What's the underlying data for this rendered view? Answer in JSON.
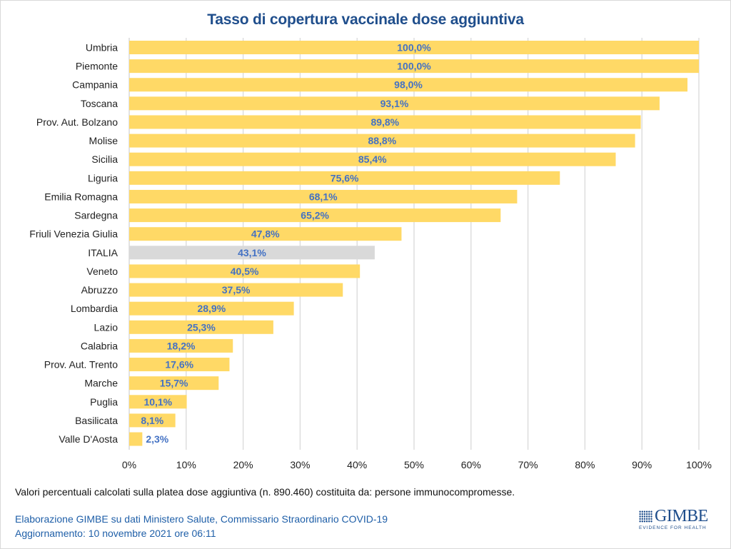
{
  "chart_data": {
    "type": "bar",
    "orientation": "horizontal",
    "title": "Tasso di copertura vaccinale dose aggiuntiva",
    "xlabel": "",
    "ylabel": "",
    "xlim": [
      0,
      100
    ],
    "x_ticks": [
      "0%",
      "10%",
      "20%",
      "30%",
      "40%",
      "50%",
      "60%",
      "70%",
      "80%",
      "90%",
      "100%"
    ],
    "grid": true,
    "categories": [
      "Umbria",
      "Piemonte",
      "Campania",
      "Toscana",
      "Prov. Aut. Bolzano",
      "Molise",
      "Sicilia",
      "Liguria",
      "Emilia Romagna",
      "Sardegna",
      "Friuli Venezia Giulia",
      "ITALIA",
      "Veneto",
      "Abruzzo",
      "Lombardia",
      "Lazio",
      "Calabria",
      "Prov. Aut. Trento",
      "Marche",
      "Puglia",
      "Basilicata",
      "Valle D'Aosta"
    ],
    "values": [
      100.0,
      100.0,
      98.0,
      93.1,
      89.8,
      88.8,
      85.4,
      75.6,
      68.1,
      65.2,
      47.8,
      43.1,
      40.5,
      37.5,
      28.9,
      25.3,
      18.2,
      17.6,
      15.7,
      10.1,
      8.1,
      2.3
    ],
    "value_labels": [
      "100,0%",
      "100,0%",
      "98,0%",
      "93,1%",
      "89,8%",
      "88,8%",
      "85,4%",
      "75,6%",
      "68,1%",
      "65,2%",
      "47,8%",
      "43,1%",
      "40,5%",
      "37,5%",
      "28,9%",
      "25,3%",
      "18,2%",
      "17,6%",
      "15,7%",
      "10,1%",
      "8,1%",
      "2,3%"
    ],
    "highlight_category": "ITALIA",
    "colors": {
      "bar": "#ffd966",
      "highlight": "#d9d9d9",
      "value_label": "#4472c4",
      "grid": "#d9d9d9"
    }
  },
  "footer": {
    "note": "Valori percentuali calcolati sulla platea dose aggiuntiva (n. 890.460) costituita da: persone immunocompromesse.",
    "source": "Elaborazione GIMBE su dati Ministero Salute, Commissario Straordinario COVID-19",
    "updated": "Aggiornamento: 10 novembre 2021 ore 06:11"
  },
  "logo": {
    "name": "GIMBE",
    "tagline": "EVIDENCE FOR HEALTH"
  }
}
